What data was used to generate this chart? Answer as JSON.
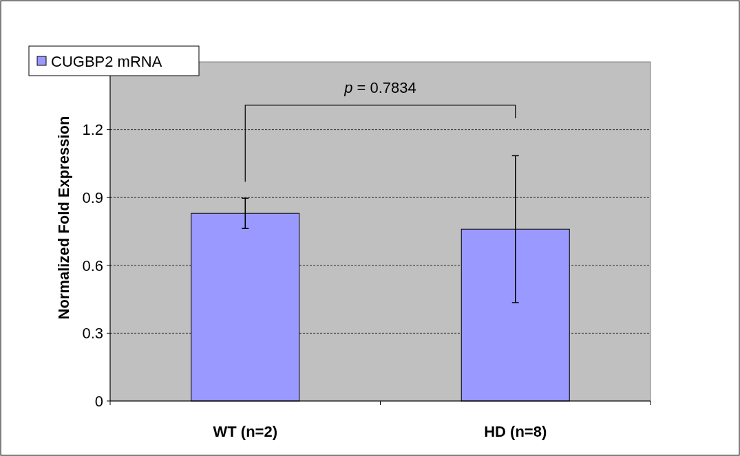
{
  "chart_data": {
    "type": "bar",
    "ylabel": "Normalized Fold Expression",
    "categories": [
      "WT (n=2)",
      "HD (n=8)"
    ],
    "series": [
      {
        "name": "CUGBP2 mRNA",
        "color": "#9999ff",
        "values": [
          0.83,
          0.76
        ],
        "errors": [
          0.067,
          0.325
        ]
      }
    ],
    "ylim": [
      0,
      1.5
    ],
    "yticks": [
      0,
      0.3,
      0.6,
      0.9,
      1.2
    ],
    "grid": "y",
    "legend": "top left",
    "annotations": [
      "p = 0.7834"
    ]
  }
}
